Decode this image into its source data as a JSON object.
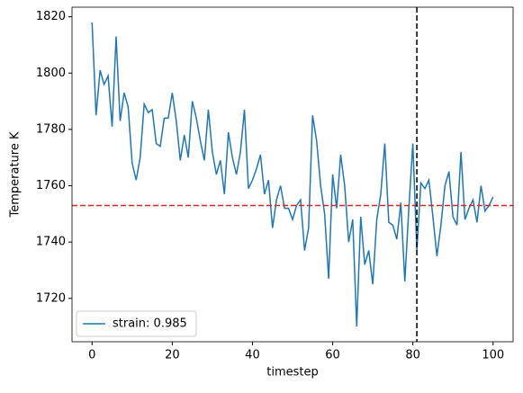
{
  "chart_data": {
    "type": "line",
    "xlabel": "timestep",
    "ylabel": "Temperature K",
    "x": [
      0,
      1,
      2,
      3,
      4,
      5,
      6,
      7,
      8,
      9,
      10,
      11,
      12,
      13,
      14,
      15,
      16,
      17,
      18,
      19,
      20,
      21,
      22,
      23,
      24,
      25,
      26,
      27,
      28,
      29,
      30,
      31,
      32,
      33,
      34,
      35,
      36,
      37,
      38,
      39,
      40,
      41,
      42,
      43,
      44,
      45,
      46,
      47,
      48,
      49,
      50,
      51,
      52,
      53,
      54,
      55,
      56,
      57,
      58,
      59,
      60,
      61,
      62,
      63,
      64,
      65,
      66,
      67,
      68,
      69,
      70,
      71,
      72,
      73,
      74,
      75,
      76,
      77,
      78,
      79,
      80,
      81,
      82,
      83,
      84,
      85,
      86,
      87,
      88,
      89,
      90,
      91,
      92,
      93,
      94,
      95,
      96,
      97,
      98,
      99,
      100
    ],
    "series": [
      {
        "name": "strain: 0.985",
        "color": "#1f77b4",
        "values": [
          1818,
          1785,
          1801,
          1796,
          1799,
          1781,
          1813,
          1783,
          1793,
          1788,
          1768,
          1762,
          1770,
          1789,
          1786,
          1787,
          1775,
          1774,
          1784,
          1784,
          1793,
          1783,
          1769,
          1778,
          1770,
          1790,
          1784,
          1776,
          1769,
          1787,
          1772,
          1764,
          1769,
          1757,
          1779,
          1770,
          1764,
          1772,
          1787,
          1759,
          1762,
          1766,
          1771,
          1757,
          1762,
          1745,
          1755,
          1760,
          1752,
          1752,
          1748,
          1753,
          1755,
          1737,
          1745,
          1785,
          1776,
          1760,
          1750,
          1727,
          1764,
          1752,
          1771,
          1760,
          1740,
          1748,
          1710,
          1749,
          1732,
          1737,
          1725,
          1748,
          1757,
          1775,
          1747,
          1746,
          1741,
          1754,
          1726,
          1752,
          1775,
          1737,
          1761,
          1759,
          1762,
          1749,
          1735,
          1746,
          1760,
          1765,
          1749,
          1746,
          1772,
          1748,
          1752,
          1755,
          1747,
          1760,
          1751,
          1753,
          1756
        ]
      }
    ],
    "xlim": [
      -5,
      105
    ],
    "ylim": [
      1704.6,
      1823.4
    ],
    "xticks": [
      0,
      20,
      40,
      60,
      80,
      100
    ],
    "yticks": [
      1720,
      1740,
      1760,
      1780,
      1800,
      1820
    ],
    "hlines": [
      {
        "value": 1753,
        "color": "#d62728"
      }
    ],
    "vlines": [
      {
        "value": 81,
        "color": "#000000"
      }
    ],
    "legend": "lower left",
    "grid": false
  }
}
